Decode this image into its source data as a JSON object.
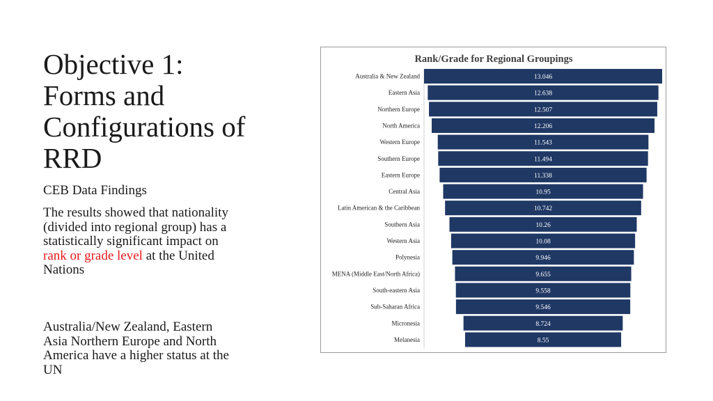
{
  "slide": {
    "title": "Objective 1: Forms and Configurations of RRD",
    "subtitle": "CEB Data Findings",
    "para1": {
      "before": "The results showed that nationality (divided into regional group) has a statistically significant impact on ",
      "highlight": "rank or grade level",
      "after": "  at the United Nations"
    },
    "para2": "Australia/New Zealand, Eastern Asia Northern Europe and North America have a higher status at the UN"
  },
  "colors": {
    "bar": "#1f3864",
    "highlight": "#e8191c"
  },
  "chart_data": {
    "type": "bar",
    "orientation": "horizontal-funnel",
    "title": "Rank/Grade  for Regional Groupings",
    "categories": [
      "Australia & New Zealand",
      "Eastern Asia",
      "Northern Europe",
      "North America",
      "Western Europe",
      "Southern Europe",
      "Eastern Europe",
      "Central Asia",
      "Latin American & the Caribbean",
      "Southern Asia",
      "Western Asia",
      "Polynesia",
      "MENA (Middle East/North Africa)",
      "South-eastern Asia",
      "Sub-Saharan Africa",
      "Micronesia",
      "Melanesia"
    ],
    "values": [
      13.046,
      12.638,
      12.507,
      12.206,
      11.543,
      11.494,
      11.338,
      10.95,
      10.742,
      10.26,
      10.08,
      9.946,
      9.655,
      9.558,
      9.546,
      8.724,
      8.55
    ],
    "value_labels": [
      "13.046",
      "12.638",
      "12.507",
      "12.206",
      "11.543",
      "11.494",
      "11.338",
      "10.95",
      "10.742",
      "10.26",
      "10.08",
      "9.946",
      "9.655",
      "9.558",
      "9.546",
      "8.724",
      "8.55"
    ],
    "baseline": 0,
    "grid": false,
    "legend": "none"
  }
}
